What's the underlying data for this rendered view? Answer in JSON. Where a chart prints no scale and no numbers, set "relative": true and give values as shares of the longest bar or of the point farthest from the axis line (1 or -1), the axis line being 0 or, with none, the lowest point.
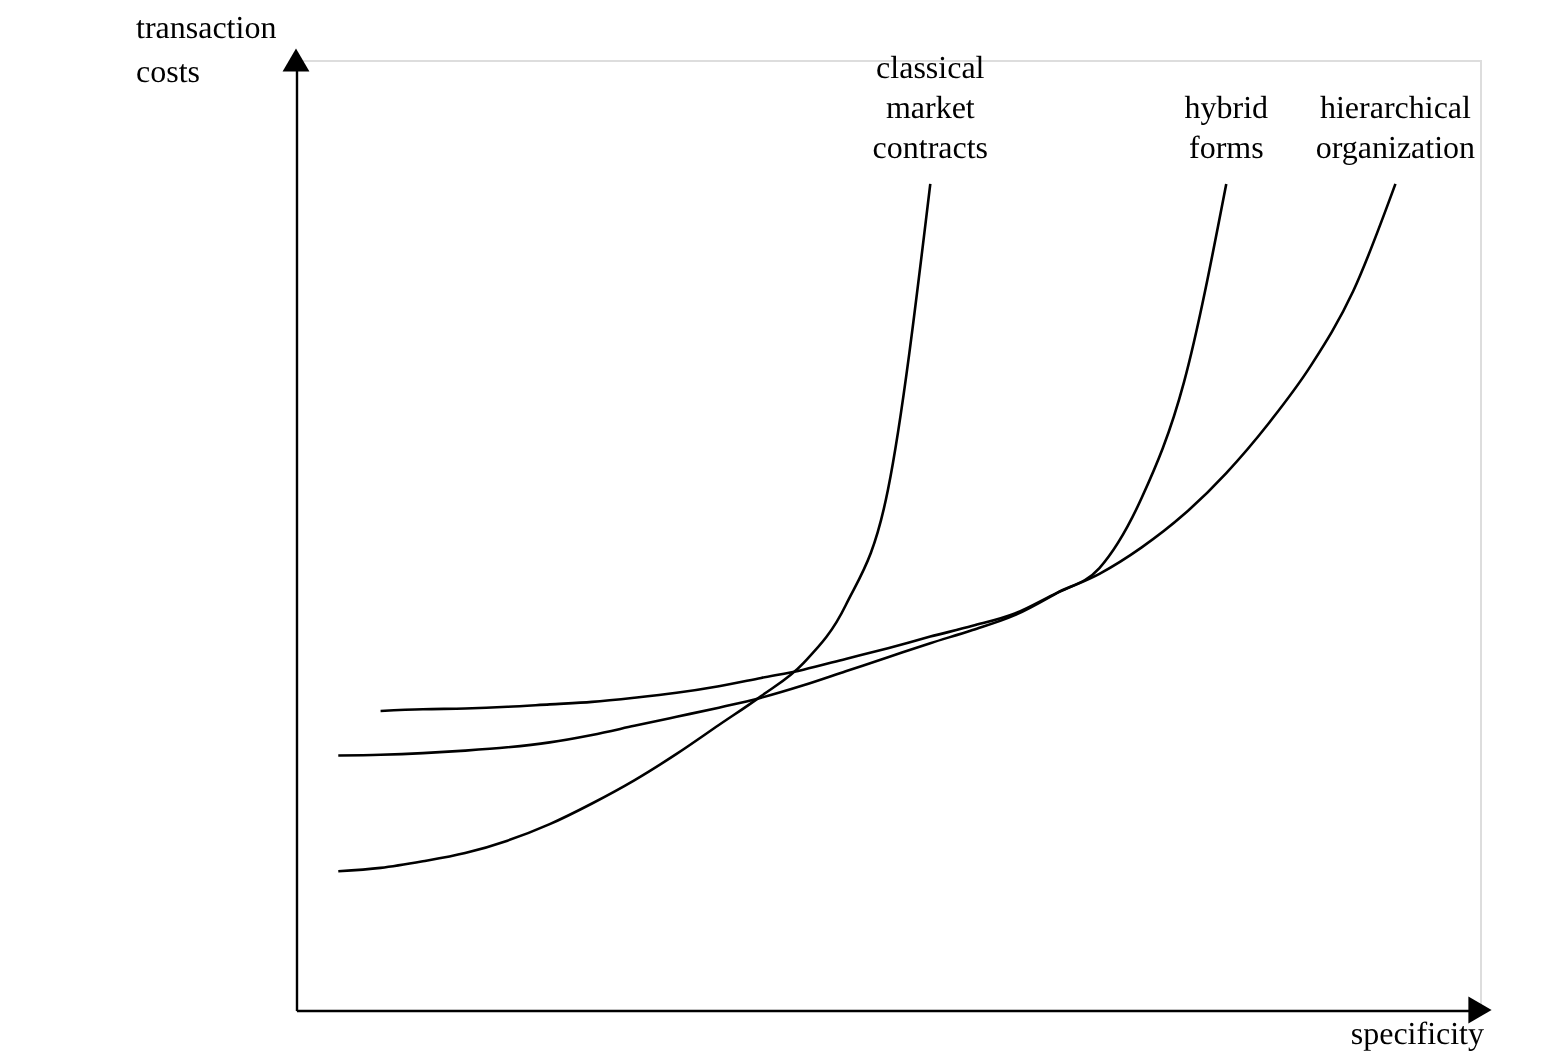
{
  "chart_data": {
    "type": "line",
    "relative": true,
    "xlabel": "specificity",
    "ylabel": "transaction costs",
    "categories": [
      null,
      null,
      null,
      null,
      null,
      null,
      null,
      null,
      null,
      null,
      null,
      null,
      null,
      null,
      null,
      null,
      null,
      null,
      null,
      null,
      null,
      null,
      null,
      null,
      null,
      null,
      null,
      null,
      null
    ],
    "series": [
      {
        "name": "classical market contracts",
        "color": "#000000",
        "values": [
          null,
          0.168,
          0.172,
          0.18,
          0.19,
          0.205,
          0.225,
          0.25,
          0.278,
          0.31,
          0.345,
          0.38,
          0.42,
          0.49,
          0.63,
          1,
          null,
          null,
          null,
          null,
          null,
          null,
          null,
          null,
          null,
          null,
          null,
          null,
          null
        ]
      },
      {
        "name": "hybrid forms",
        "color": "#000000",
        "values": [
          null,
          0.308,
          0.309,
          0.311,
          0.314,
          0.318,
          0.324,
          0.333,
          0.344,
          0.355,
          0.366,
          0.378,
          0.393,
          0.41,
          0.427,
          0.444,
          0.46,
          0.478,
          0.505,
          0.535,
          0.62,
          0.76,
          1,
          null,
          null,
          null,
          null,
          null,
          null
        ]
      },
      {
        "name": "hierarchical organization",
        "color": "#000000",
        "values": [
          null,
          null,
          0.362,
          0.364,
          0.365,
          0.367,
          0.37,
          0.373,
          0.378,
          0.384,
          0.392,
          0.402,
          0.412,
          0.425,
          0.438,
          0.452,
          0.465,
          0.48,
          0.505,
          0.528,
          0.56,
          0.6,
          0.65,
          0.71,
          0.78,
          0.87,
          1,
          null,
          null
        ]
      }
    ]
  }
}
